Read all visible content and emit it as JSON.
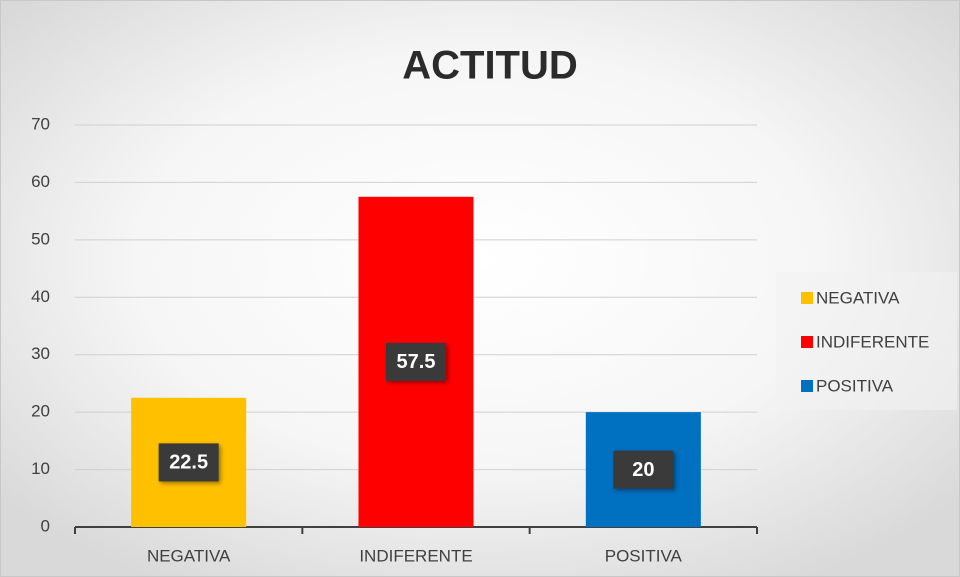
{
  "chart_data": {
    "type": "bar",
    "title": "ACTITUD",
    "categories": [
      "NEGATIVA",
      "INDIFERENTE",
      "POSITIVA"
    ],
    "values": [
      22.5,
      57.5,
      20
    ],
    "colors": [
      "#ffc000",
      "#ff0000",
      "#0070c0"
    ],
    "ylim": [
      0,
      70
    ],
    "yticks": [
      0,
      10,
      20,
      30,
      40,
      50,
      60,
      70
    ],
    "grid": true,
    "legend": "right"
  }
}
